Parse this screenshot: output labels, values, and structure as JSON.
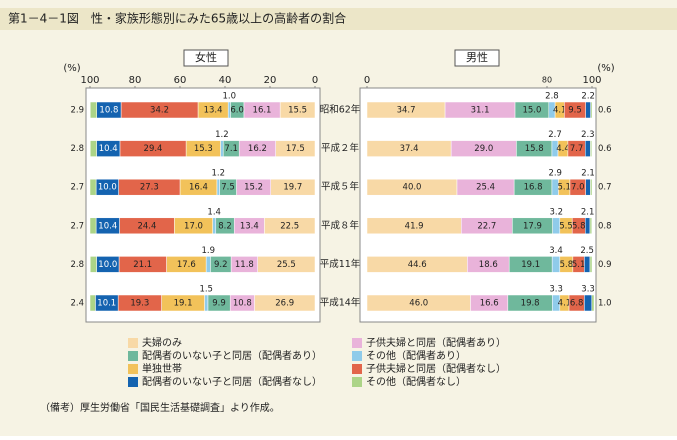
{
  "title": "第1－4－1図　性・家族形態別にみた65歳以上の高齢者の割合",
  "note": "（備考）厚生労働省「国民生活基礎調査」より作成。",
  "chart_data": [
    {
      "type": "bar",
      "title": "女性",
      "xlabel": "(%)",
      "categories": [
        "昭和62年",
        "平成２年",
        "平成５年",
        "平成８年",
        "平成11年",
        "平成14年"
      ],
      "xlim": [
        100,
        0
      ],
      "xticks": [
        100,
        80,
        60,
        40,
        20,
        0
      ],
      "series": [
        {
          "name": "夫婦のみ",
          "color": "#f8d9a6",
          "values": [
            15.5,
            17.5,
            19.7,
            22.5,
            25.5,
            26.9
          ],
          "value_labels": [
            "15.5",
            "17.5",
            "19.7",
            "22.5",
            "25.5",
            "26.9"
          ]
        },
        {
          "name": "子供夫婦と同居（配偶者あり）",
          "color": "#e9b3da",
          "values": [
            16.1,
            16.2,
            15.2,
            13.4,
            11.8,
            10.8
          ],
          "value_labels": [
            "16.1",
            "16.2",
            "15.2",
            "13.4",
            "11.8",
            "10.8"
          ]
        },
        {
          "name": "配偶者のいない子と同居（配偶者あり）",
          "color": "#6fb89c",
          "values": [
            6.0,
            7.1,
            7.5,
            8.2,
            9.2,
            9.9
          ],
          "value_labels": [
            "6.0",
            "7.1",
            "7.5",
            "8.2",
            "9.2",
            "9.9"
          ]
        },
        {
          "name": "その他（配偶者あり）",
          "color": "#8fcbea",
          "values": [
            1.0,
            1.2,
            1.2,
            1.4,
            1.9,
            1.5
          ],
          "value_labels": [
            "1.0",
            "1.2",
            "1.2",
            "1.4",
            "1.9",
            "1.5"
          ]
        },
        {
          "name": "単独世帯",
          "color": "#f2c25a",
          "values": [
            13.4,
            15.3,
            16.4,
            17.0,
            17.6,
            19.1
          ],
          "value_labels": [
            "13.4",
            "15.3",
            "16.4",
            "17.0",
            "17.6",
            "19.1"
          ]
        },
        {
          "name": "子供夫婦と同居（配偶者なし）",
          "color": "#e2654a",
          "values": [
            34.2,
            29.4,
            27.3,
            24.4,
            21.1,
            19.3
          ],
          "value_labels": [
            "34.2",
            "29.4",
            "27.3",
            "24.4",
            "21.1",
            "19.3"
          ]
        },
        {
          "name": "配偶者のいない子と同居（配偶者なし）",
          "color": "#1463b0",
          "values": [
            10.8,
            10.4,
            10.0,
            10.4,
            10.0,
            10.1
          ],
          "value_labels": [
            "10.8",
            "10.4",
            "10.0",
            "10.4",
            "10.0",
            "10.1"
          ]
        },
        {
          "name": "その他（配偶者なし）",
          "color": "#acd487",
          "values": [
            2.9,
            2.8,
            2.7,
            2.7,
            2.8,
            2.4
          ],
          "value_labels": [
            "2.9",
            "2.8",
            "2.7",
            "2.7",
            "2.8",
            "2.4"
          ]
        }
      ]
    },
    {
      "type": "bar",
      "title": "男性",
      "xlabel": "(%)",
      "xlim": [
        0,
        100
      ],
      "xticks": [
        0,
        80,
        100
      ],
      "series": [
        {
          "values": [
            34.7,
            37.4,
            40.0,
            41.9,
            44.6,
            46.0
          ],
          "value_labels": [
            "34.7",
            "37.4",
            "40.0",
            "41.9",
            "44.6",
            "46.0"
          ]
        },
        {
          "values": [
            31.1,
            29.0,
            25.4,
            22.7,
            18.6,
            16.6
          ],
          "value_labels": [
            "31.1",
            "29.0",
            "25.4",
            "22.7",
            "18.6",
            "16.6"
          ]
        },
        {
          "values": [
            15.0,
            15.8,
            16.8,
            17.9,
            19.1,
            19.8
          ],
          "value_labels": [
            "15.0",
            "15.8",
            "16.8",
            "17.9",
            "19.1",
            "19.8"
          ]
        },
        {
          "values": [
            2.8,
            2.7,
            2.9,
            3.2,
            3.4,
            3.3
          ],
          "value_labels": [
            "2.8",
            "2.7",
            "2.9",
            "3.2",
            "3.4",
            "3.3"
          ]
        },
        {
          "values": [
            4.1,
            4.4,
            5.1,
            5.5,
            5.8,
            4.1
          ],
          "value_labels": [
            "4.1",
            "4.4",
            "5.1",
            "5.5",
            "5.8",
            "4.1"
          ]
        },
        {
          "values": [
            9.5,
            7.7,
            7.0,
            5.8,
            5.1,
            6.8
          ],
          "value_labels": [
            "9.5",
            "7.7",
            "7.0",
            "5.8",
            "5.1",
            "6.8"
          ]
        },
        {
          "values": [
            2.2,
            2.3,
            2.1,
            2.1,
            2.5,
            3.3
          ],
          "value_labels": [
            "2.2",
            "2.3",
            "2.1",
            "2.1",
            "2.5",
            "3.3"
          ]
        },
        {
          "values": [
            0.6,
            0.6,
            0.7,
            0.8,
            0.9,
            1.0
          ],
          "value_labels": [
            "0.6",
            "0.6",
            "0.7",
            "0.8",
            "0.9",
            "1.0"
          ]
        }
      ]
    }
  ]
}
